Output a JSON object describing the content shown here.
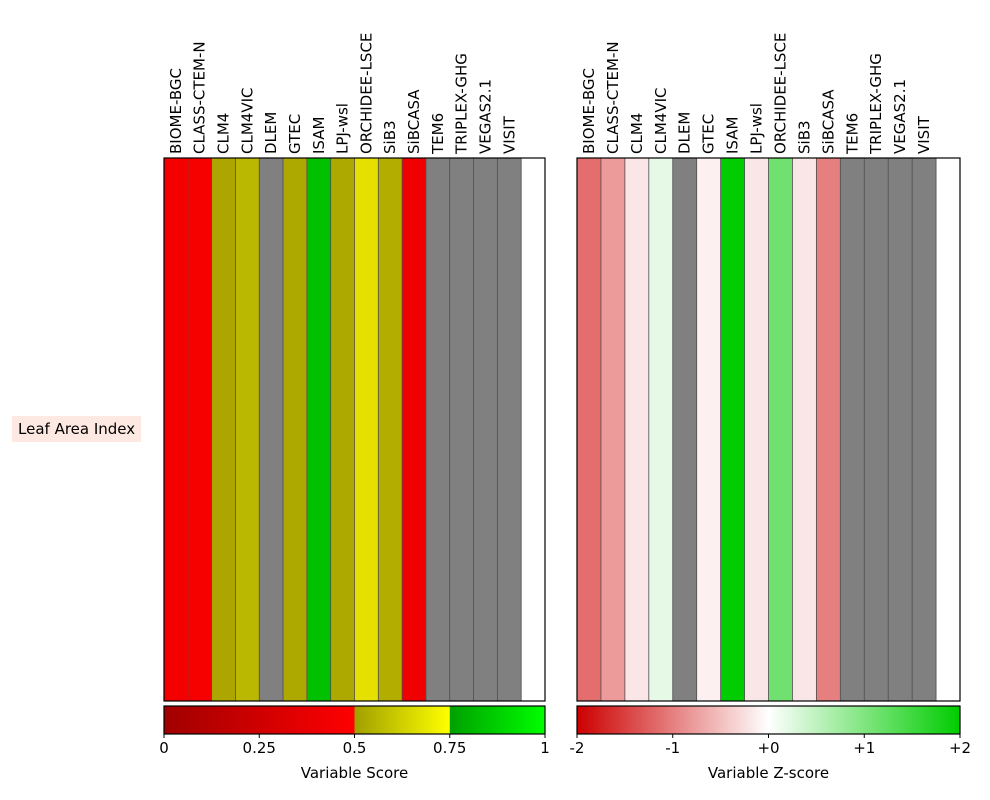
{
  "chart_data": [
    {
      "type": "heatmap",
      "row_labels": [
        "Leaf Area Index"
      ],
      "row_label_bg": "#fde9e1",
      "models": [
        "BIOME-BGC",
        "CLASS-CTEM-N",
        "CLM4",
        "CLM4VIC",
        "DLEM",
        "GTEC",
        "ISAM",
        "LPJ-wsl",
        "ORCHIDEE-LSCE",
        "SiB3",
        "SiBCASA",
        "TEM6",
        "TRIPLEX-GHG",
        "VEGAS2.1",
        "VISIT"
      ],
      "values": [
        0.45,
        0.48,
        0.57,
        0.63,
        null,
        0.58,
        0.82,
        0.58,
        0.69,
        0.59,
        0.47,
        null,
        null,
        null,
        null
      ],
      "cell_colors": [
        "#f40000",
        "#f60000",
        "#ada600",
        "#bab800",
        "#808080",
        "#aea900",
        "#00c000",
        "#aea900",
        "#e5e000",
        "#b3ad00",
        "#f00000",
        "#808080",
        "#808080",
        "#808080",
        "#808080"
      ],
      "missing_color": "#808080",
      "colorbar": {
        "label": "Variable Score",
        "ticks": [
          "0",
          "0.25",
          "0.5",
          "0.75",
          "1"
        ],
        "tick_values": [
          0,
          0.25,
          0.5,
          0.75,
          1
        ],
        "range": [
          0,
          1
        ],
        "segments": [
          {
            "from": 0,
            "to": 0.5,
            "colors": [
              "#a00000",
              "#ff0000"
            ]
          },
          {
            "from": 0.5,
            "to": 0.75,
            "colors": [
              "#a0a000",
              "#ffff00"
            ]
          },
          {
            "from": 0.75,
            "to": 1,
            "colors": [
              "#00a000",
              "#00ff00"
            ]
          }
        ]
      }
    },
    {
      "type": "heatmap",
      "models": [
        "BIOME-BGC",
        "CLASS-CTEM-N",
        "CLM4",
        "CLM4VIC",
        "DLEM",
        "GTEC",
        "ISAM",
        "LPJ-wsl",
        "ORCHIDEE-LSCE",
        "SiB3",
        "SiBCASA",
        "TEM6",
        "TRIPLEX-GHG",
        "VEGAS2.1",
        "VISIT"
      ],
      "values": [
        -1.1,
        -0.9,
        -0.3,
        0.2,
        null,
        -0.2,
        2.0,
        -0.3,
        1.0,
        -0.3,
        -1.0,
        null,
        null,
        null,
        null
      ],
      "cell_colors": [
        "#e46e6e",
        "#ec9a9a",
        "#fae6e6",
        "#e6f8e6",
        "#808080",
        "#fcf0f0",
        "#00cc00",
        "#fae6e6",
        "#70e070",
        "#fae6e6",
        "#e68080",
        "#808080",
        "#808080",
        "#808080",
        "#808080"
      ],
      "missing_color": "#808080",
      "colorbar": {
        "label": "Variable Z-score",
        "ticks": [
          "-2",
          "-1",
          "+0",
          "+1",
          "+2"
        ],
        "tick_values": [
          -2,
          -1,
          0,
          1,
          2
        ],
        "range": [
          -2,
          2
        ],
        "segments": [
          {
            "from": -2,
            "to": 0,
            "colors": [
              "#cc0000",
              "#ffffff"
            ]
          },
          {
            "from": 0,
            "to": 2,
            "colors": [
              "#ffffff",
              "#00cc00"
            ]
          }
        ]
      }
    }
  ]
}
